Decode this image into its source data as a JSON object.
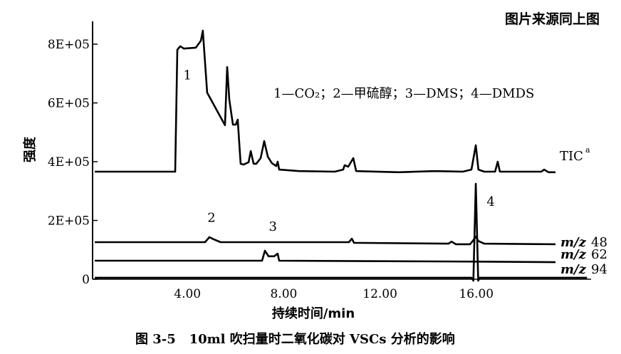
{
  "header": "图片来源同上图",
  "caption": "图 3-5   10ml 吹扫量时二氧化碳对 VSCs 分析的影响",
  "chart_data": {
    "type": "line",
    "title": "",
    "xlabel": "持续时间/min",
    "ylabel": "强度",
    "xlim": [
      0,
      20.7
    ],
    "ylim": [
      0,
      860000.0
    ],
    "x_ticks": [
      "4.00",
      "8.00",
      "12.00",
      "16.00"
    ],
    "x_tick_values": [
      4,
      8,
      12,
      16
    ],
    "y_ticks": [
      "0",
      "2E+05",
      "4E+05",
      "6E+05",
      "8E+05"
    ],
    "y_tick_values": [
      0,
      200000,
      400000,
      600000,
      800000
    ],
    "grid": false,
    "legend_text": "1—CO₂；2—甲硫醇；3—DMS；4—DMDS",
    "series": [
      {
        "name": "TIC",
        "label": "TIC",
        "sup": "a",
        "points": [
          [
            0.15,
            366000
          ],
          [
            3.49,
            366000
          ],
          [
            3.58,
            781000
          ],
          [
            3.7,
            793000
          ],
          [
            3.85,
            785000
          ],
          [
            4.35,
            788000
          ],
          [
            4.56,
            812000
          ],
          [
            4.64,
            846000
          ],
          [
            4.82,
            635000
          ],
          [
            5.56,
            524000
          ],
          [
            5.65,
            722000
          ],
          [
            5.74,
            611000
          ],
          [
            5.89,
            526000
          ],
          [
            6.01,
            526000
          ],
          [
            6.09,
            543000
          ],
          [
            6.21,
            393000
          ],
          [
            6.33,
            390000
          ],
          [
            6.54,
            398000
          ],
          [
            6.63,
            436000
          ],
          [
            6.75,
            393000
          ],
          [
            6.86,
            393000
          ],
          [
            7.04,
            412000
          ],
          [
            7.19,
            470000
          ],
          [
            7.34,
            417000
          ],
          [
            7.51,
            395000
          ],
          [
            7.69,
            385000
          ],
          [
            7.75,
            400000
          ],
          [
            7.81,
            373000
          ],
          [
            8.64,
            368000
          ],
          [
            10.12,
            366000
          ],
          [
            10.47,
            373000
          ],
          [
            10.53,
            388000
          ],
          [
            10.68,
            383000
          ],
          [
            10.89,
            412000
          ],
          [
            11.01,
            368000
          ],
          [
            12.78,
            364000
          ],
          [
            14.26,
            368000
          ],
          [
            15.44,
            366000
          ],
          [
            15.8,
            373000
          ],
          [
            15.98,
            456000
          ],
          [
            16.09,
            373000
          ],
          [
            16.33,
            366000
          ],
          [
            16.78,
            366000
          ],
          [
            16.89,
            400000
          ],
          [
            16.98,
            366000
          ],
          [
            18.7,
            366000
          ],
          [
            18.82,
            373000
          ],
          [
            19.0,
            364000
          ],
          [
            19.29,
            364000
          ]
        ]
      },
      {
        "name": "m/z 48",
        "label": "48",
        "points": [
          [
            0.15,
            126000
          ],
          [
            4.73,
            126000
          ],
          [
            4.91,
            143000
          ],
          [
            5.09,
            136000
          ],
          [
            5.38,
            126000
          ],
          [
            10.71,
            126000
          ],
          [
            10.83,
            138000
          ],
          [
            10.92,
            124000
          ],
          [
            14.85,
            121000
          ],
          [
            14.97,
            128000
          ],
          [
            15.15,
            119000
          ],
          [
            15.74,
            119000
          ],
          [
            15.86,
            131000
          ],
          [
            15.98,
            145000
          ],
          [
            16.09,
            130000
          ],
          [
            16.33,
            121000
          ],
          [
            19.29,
            119000
          ]
        ]
      },
      {
        "name": "m/z 62",
        "label": "62",
        "points": [
          [
            0.15,
            63000
          ],
          [
            7.1,
            63000
          ],
          [
            7.22,
            97000
          ],
          [
            7.37,
            78000
          ],
          [
            7.6,
            78000
          ],
          [
            7.75,
            87000
          ],
          [
            7.81,
            63000
          ],
          [
            16.09,
            60000
          ],
          [
            19.29,
            58000
          ]
        ]
      },
      {
        "name": "m/z 94",
        "label": "94",
        "points": [
          [
            0.15,
            5000
          ],
          [
            15.8,
            5000
          ],
          [
            15.88,
            -5000
          ],
          [
            15.98,
            325000
          ],
          [
            16.08,
            -5000
          ],
          [
            16.14,
            5000
          ],
          [
            20.6,
            5000
          ]
        ]
      }
    ],
    "annotations": [
      {
        "text": "1",
        "x": 4.0,
        "y": 680000
      },
      {
        "text": "2",
        "x": 5.0,
        "y": 195000
      },
      {
        "text": "3",
        "x": 7.55,
        "y": 165000
      },
      {
        "text": "4",
        "x": 16.6,
        "y": 250000
      }
    ]
  }
}
